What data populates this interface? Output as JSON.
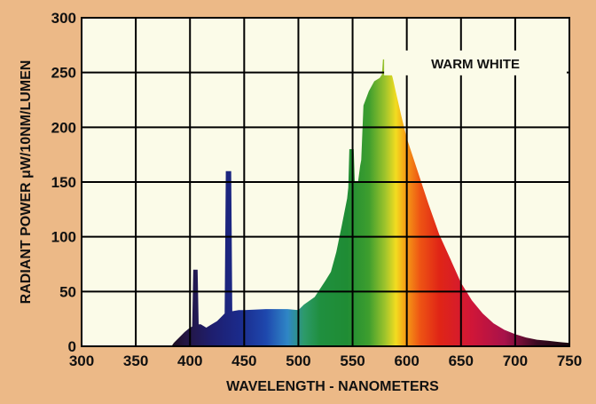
{
  "chart_data": {
    "type": "area",
    "title": "WARM WHITE",
    "xlabel": "WAVELENGTH - NANOMETERS",
    "ylabel": "RADIANT POWER μW/10NM/LUMEN",
    "xlim": [
      300,
      750
    ],
    "ylim": [
      0,
      300
    ],
    "x_ticks": [
      "300",
      "350",
      "400",
      "450",
      "500",
      "550",
      "600",
      "650",
      "700",
      "750"
    ],
    "y_ticks": [
      "0",
      "50",
      "100",
      "150",
      "200",
      "250",
      "300"
    ],
    "grid": true,
    "legend": "none",
    "fill": "visible spectrum color gradient",
    "colors": {
      "background": "#ecb987",
      "plot_background": "#fbfbe8",
      "grid": "#000000"
    },
    "series": [
      {
        "x": [
          383,
          385,
          390,
          395,
          400,
          402,
          403,
          407,
          408,
          410,
          415,
          420,
          425,
          430,
          432,
          433,
          438,
          439,
          445,
          450,
          470,
          490,
          500,
          505,
          515,
          525,
          530,
          535,
          540,
          545,
          546,
          547,
          551,
          552,
          555,
          557,
          558,
          560,
          565,
          570,
          575,
          577,
          578,
          583,
          584,
          587,
          590,
          595,
          600,
          610,
          620,
          630,
          640,
          650,
          660,
          670,
          680,
          690,
          700,
          710,
          720,
          730,
          740,
          750
        ],
        "values": [
          0,
          3,
          8,
          13,
          17,
          18,
          70,
          70,
          20,
          20,
          17,
          20,
          23,
          28,
          30,
          160,
          160,
          32,
          33,
          33,
          34,
          34,
          33,
          38,
          45,
          60,
          68,
          86,
          110,
          135,
          145,
          180,
          180,
          150,
          150,
          165,
          170,
          220,
          233,
          242,
          245,
          248,
          262,
          262,
          255,
          245,
          232,
          210,
          190,
          160,
          130,
          102,
          80,
          58,
          42,
          30,
          21,
          15,
          11,
          8,
          6,
          5,
          4,
          3
        ]
      }
    ]
  }
}
